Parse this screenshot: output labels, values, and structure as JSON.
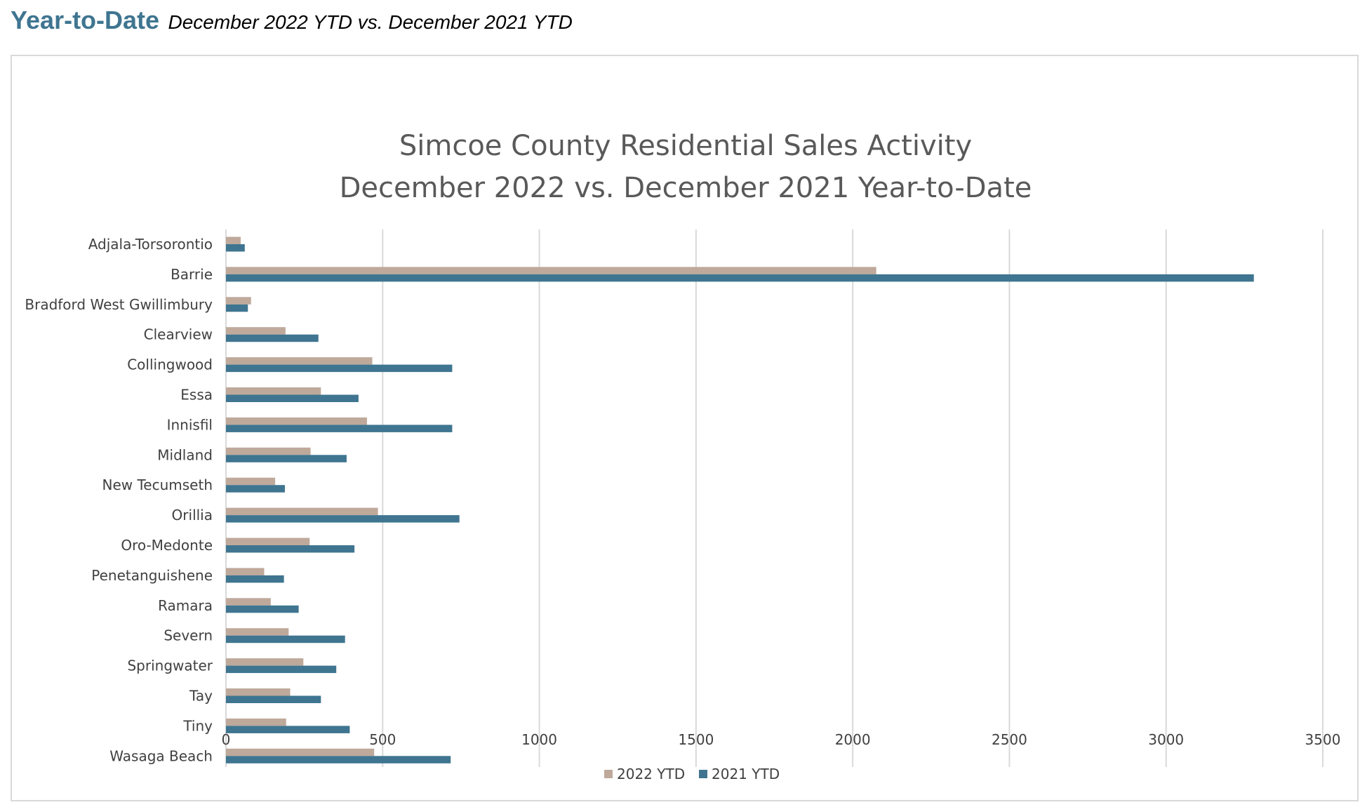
{
  "header": {
    "title": "Year-to-Date",
    "subtitle": "December 2022 YTD vs. December 2021 YTD"
  },
  "colors": {
    "header_title": "#3f7590",
    "series_2022": "#bfa99b",
    "series_2021": "#3f7590",
    "gridline": "#d9d9d9",
    "chart_title": "#595959",
    "label_text": "#404040"
  },
  "chart_data": {
    "type": "bar",
    "orientation": "horizontal",
    "title": "Simcoe County Residential Sales Activity",
    "subtitle": "December 2022 vs. December 2021 Year-to-Date",
    "xlabel": "",
    "ylabel": "",
    "xlim": [
      0,
      3500
    ],
    "xticks": [
      0,
      500,
      1000,
      1500,
      2000,
      2500,
      3000,
      3500
    ],
    "grid": true,
    "legend_position": "bottom",
    "categories": [
      "Adjala-Torsorontio",
      "Barrie",
      "Bradford West Gwillimbury",
      "Clearview",
      "Collingwood",
      "Essa",
      "Innisfil",
      "Midland",
      "New Tecumseth",
      "Orillia",
      "Oro-Medonte",
      "Penetanguishene",
      "Ramara",
      "Severn",
      "Springwater",
      "Tay",
      "Tiny",
      "Wasaga Beach"
    ],
    "series": [
      {
        "name": "2022 YTD",
        "color": "#bfa99b",
        "values": [
          47,
          2075,
          80,
          190,
          467,
          303,
          450,
          270,
          157,
          485,
          267,
          122,
          143,
          200,
          247,
          205,
          192,
          473
        ]
      },
      {
        "name": "2021 YTD",
        "color": "#3f7590",
        "values": [
          60,
          3280,
          70,
          295,
          722,
          423,
          722,
          385,
          188,
          745,
          410,
          185,
          232,
          380,
          352,
          303,
          395,
          717
        ]
      }
    ]
  }
}
